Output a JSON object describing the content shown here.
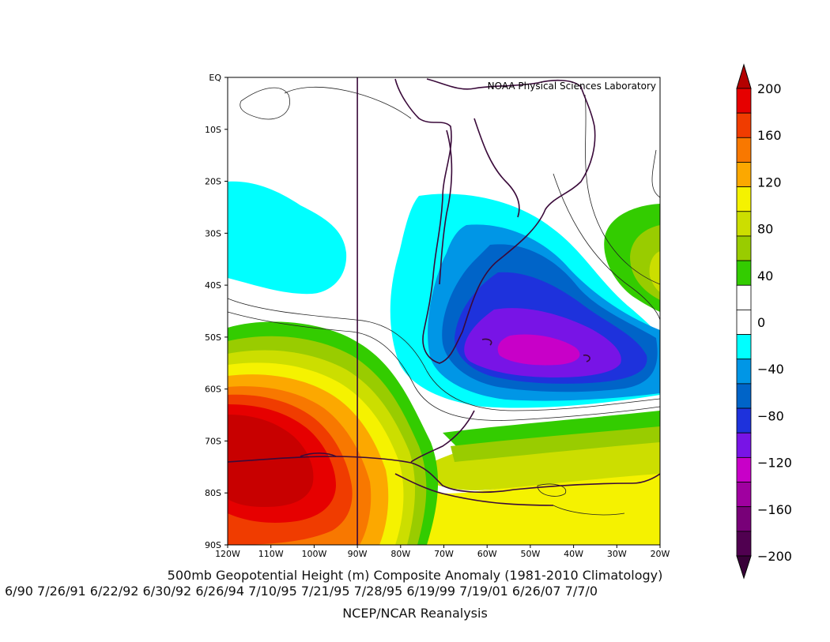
{
  "credit": "NOAA Physical Sciences Laboratory",
  "title": "500mb Geopotential Height (m) Composite Anomaly (1981-2010 Climatology)",
  "dates": "6/90 7/26/91 6/22/92 6/30/92 6/26/94 7/10/95 7/21/95 7/28/95 6/19/99 7/19/01 6/26/07 7/7/0",
  "source": "NCEP/NCAR Reanalysis",
  "map": {
    "lon_range": [
      -120,
      -20
    ],
    "lat_range": [
      -90,
      0
    ],
    "lat_ticks": [
      "EQ",
      "10S",
      "20S",
      "30S",
      "40S",
      "50S",
      "60S",
      "70S",
      "80S",
      "90S"
    ],
    "lon_ticks": [
      "120W",
      "110W",
      "100W",
      "90W",
      "80W",
      "70W",
      "60W",
      "50W",
      "40W",
      "30W",
      "20W"
    ],
    "meridian_line_lon": -90
  },
  "colorbar": {
    "labels": [
      "200",
      "160",
      "120",
      "80",
      "40",
      "0",
      "−40",
      "−80",
      "−120",
      "−160",
      "−200"
    ],
    "colors": [
      "#e60000",
      "#f03c00",
      "#f87800",
      "#fca800",
      "#f5f200",
      "#ccde00",
      "#99cc00",
      "#33cc00",
      "#ffffff",
      "#ffffff",
      "#00ffff",
      "#0096e6",
      "#0064c8",
      "#1e32dc",
      "#7814e6",
      "#c800c8",
      "#a000a0",
      "#780078",
      "#500050"
    ],
    "top_arrow": "#b40000",
    "bottom_arrow": "#380038"
  }
}
